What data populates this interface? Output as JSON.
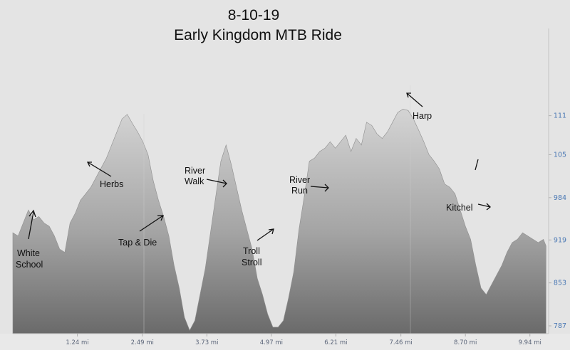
{
  "chart_data": {
    "type": "area",
    "title": [
      "8-10-19",
      "Early Kingdom MTB Ride"
    ],
    "xlabel": "",
    "ylabel": "",
    "x_unit": "mi",
    "xlim": [
      0,
      10.3
    ],
    "ylim": [
      775,
      122
    ],
    "x_ticks": [
      "1.24 mi",
      "2.49 mi",
      "3.73 mi",
      "4.97 mi",
      "6.21 mi",
      "7.46 mi",
      "8.70 mi",
      "9.94 mi"
    ],
    "x_tick_values": [
      1.24,
      2.49,
      3.73,
      4.97,
      6.21,
      7.46,
      8.7,
      9.94
    ],
    "y_ticks": [
      "111",
      "105",
      "984",
      "919",
      "853",
      "787"
    ],
    "y_tick_values": [
      111,
      105,
      984,
      919,
      853,
      787
    ],
    "y_axis_position": "right",
    "grid": false,
    "colors": {
      "fill_top": "#d8d8d8",
      "fill_bottom": "#6d6d6d",
      "background": "#e4e4e4",
      "y_tick": "#4a78b4"
    },
    "series": [
      {
        "x": [
          0.0,
          0.1,
          0.2,
          0.3,
          0.4,
          0.5,
          0.6,
          0.7,
          0.8,
          0.9,
          1.0,
          1.1,
          1.2,
          1.3,
          1.4,
          1.5,
          1.6,
          1.7,
          1.8,
          1.9,
          2.0,
          2.1,
          2.2,
          2.3,
          2.4,
          2.5,
          2.6,
          2.7,
          2.8,
          2.9,
          3.0,
          3.1,
          3.2,
          3.3,
          3.4,
          3.5,
          3.6,
          3.7,
          3.8,
          3.9,
          4.0,
          4.1,
          4.2,
          4.3,
          4.4,
          4.5,
          4.6,
          4.7,
          4.8,
          4.9,
          5.0,
          5.1,
          5.2,
          5.3,
          5.4,
          5.5,
          5.6,
          5.7,
          5.8,
          5.9,
          6.0,
          6.1,
          6.2,
          6.3,
          6.4,
          6.5,
          6.6,
          6.7,
          6.8,
          6.9,
          7.0,
          7.1,
          7.2,
          7.3,
          7.4,
          7.5,
          7.6,
          7.7,
          7.8,
          7.9,
          8.0,
          8.1,
          8.2,
          8.3,
          8.4,
          8.5,
          8.6,
          8.7,
          8.8,
          8.9,
          9.0,
          9.1,
          9.2,
          9.3,
          9.4,
          9.5,
          9.6,
          9.7,
          9.8,
          9.9,
          10.0,
          10.1,
          10.2,
          10.25
        ],
        "y": [
          930,
          925,
          945,
          965,
          950,
          955,
          945,
          940,
          925,
          905,
          900,
          945,
          960,
          980,
          990,
          1000,
          1015,
          1030,
          1045,
          1065,
          1085,
          1105,
          1112,
          1098,
          1085,
          1070,
          1050,
          1010,
          980,
          955,
          925,
          880,
          845,
          800,
          780,
          795,
          835,
          875,
          930,
          985,
          1040,
          1065,
          1035,
          1000,
          965,
          935,
          905,
          860,
          835,
          805,
          785,
          785,
          795,
          830,
          870,
          935,
          985,
          1040,
          1045,
          1055,
          1060,
          1070,
          1060,
          1070,
          1080,
          1055,
          1075,
          1065,
          1100,
          1095,
          1082,
          1075,
          1085,
          1100,
          1115,
          1120,
          1118,
          1105,
          1088,
          1070,
          1050,
          1040,
          1028,
          1005,
          1000,
          990,
          965,
          940,
          920,
          880,
          845,
          835,
          850,
          865,
          880,
          900,
          915,
          920,
          930,
          925,
          920,
          915,
          920,
          910
        ]
      }
    ],
    "annotations": [
      {
        "text": [
          "White",
          "School"
        ]
      },
      {
        "text": [
          "Herbs"
        ]
      },
      {
        "text": [
          "Tap & Die"
        ]
      },
      {
        "text": [
          "River",
          "Walk"
        ]
      },
      {
        "text": [
          "Troll",
          "Stroll"
        ]
      },
      {
        "text": [
          "River",
          "Run"
        ]
      },
      {
        "text": [
          "Harp"
        ]
      },
      {
        "text": [
          "Kitchel"
        ]
      }
    ]
  }
}
